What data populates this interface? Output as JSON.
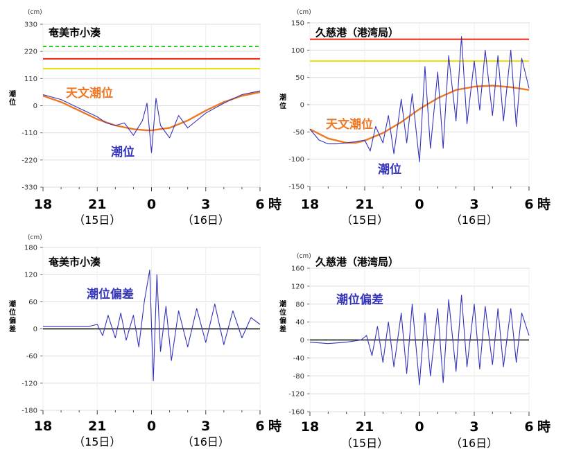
{
  "chart_data": [
    {
      "type": "line",
      "title": "奄美市小湊",
      "unit": "(cm)",
      "ylabel": "潮位",
      "yticks": [
        330,
        220,
        110,
        0,
        -110,
        -220,
        -330
      ],
      "ylim": [
        -330,
        330
      ],
      "x_ticks": [
        "18",
        "21",
        "0",
        "3",
        "6"
      ],
      "x_unit": "時",
      "date_labels": [
        {
          "at": "21",
          "text": "（15日）"
        },
        {
          "at": "3",
          "text": "（16日）"
        }
      ],
      "x_range_hours": [
        0,
        12
      ],
      "thresholds": [
        {
          "value": 240,
          "color": "#22cc22",
          "style": "dashed"
        },
        {
          "value": 190,
          "color": "#ee2211",
          "style": "solid"
        },
        {
          "value": 150,
          "color": "#eedd00",
          "style": "solid"
        }
      ],
      "series": [
        {
          "name": "天文潮位",
          "color": "#ee7722",
          "x": [
            0,
            1,
            2,
            3,
            4,
            5,
            5.75,
            6,
            7,
            8,
            9,
            10,
            11,
            12
          ],
          "values": [
            40,
            15,
            -20,
            -55,
            -80,
            -95,
            -100,
            -100,
            -90,
            -60,
            -20,
            15,
            40,
            55
          ]
        },
        {
          "name": "潮位",
          "color": "#3333bb",
          "x": [
            0,
            1,
            2,
            3,
            3.5,
            4,
            4.5,
            5,
            5.5,
            5.75,
            6,
            6.25,
            6.5,
            7,
            7.5,
            8,
            9,
            10,
            11,
            12
          ],
          "values": [
            45,
            25,
            -10,
            -45,
            -70,
            -80,
            -70,
            -120,
            -60,
            10,
            -190,
            30,
            -80,
            -130,
            -40,
            -90,
            -30,
            10,
            45,
            60
          ]
        }
      ]
    },
    {
      "type": "line",
      "title": "久慈港（港湾局）",
      "unit": "(cm)",
      "ylabel": "潮位",
      "yticks": [
        150,
        100,
        50,
        0,
        -50,
        -100,
        -150
      ],
      "ylim": [
        -150,
        150
      ],
      "x_ticks": [
        "18",
        "21",
        "0",
        "3",
        "6"
      ],
      "x_unit": "時",
      "date_labels": [
        {
          "at": "21",
          "text": "（15日）"
        },
        {
          "at": "3",
          "text": "（16日）"
        }
      ],
      "x_range_hours": [
        0,
        12
      ],
      "thresholds": [
        {
          "value": 120,
          "color": "#ee2211",
          "style": "solid"
        },
        {
          "value": 80,
          "color": "#eedd00",
          "style": "solid"
        }
      ],
      "series": [
        {
          "name": "天文潮位",
          "color": "#ee7722",
          "x": [
            0,
            1,
            2,
            2.5,
            3,
            4,
            5,
            6,
            7,
            8,
            9,
            10,
            11,
            12
          ],
          "values": [
            -45,
            -62,
            -70,
            -70,
            -66,
            -52,
            -32,
            -8,
            12,
            27,
            33,
            35,
            32,
            27
          ]
        },
        {
          "name": "潮位",
          "color": "#3333bb",
          "x": [
            0,
            0.5,
            1,
            1.5,
            2,
            2.5,
            3,
            3.3,
            3.6,
            4,
            4.3,
            4.6,
            5,
            5.3,
            5.6,
            6,
            6.3,
            6.6,
            7,
            7.3,
            7.6,
            8,
            8.3,
            8.6,
            9,
            9.3,
            9.6,
            10,
            10.3,
            10.6,
            11,
            11.3,
            11.6,
            12
          ],
          "values": [
            -45,
            -65,
            -72,
            -72,
            -70,
            -68,
            -65,
            -85,
            -40,
            -70,
            -20,
            -90,
            10,
            -70,
            20,
            -105,
            70,
            -80,
            60,
            -80,
            90,
            -30,
            125,
            -35,
            80,
            -10,
            100,
            -20,
            90,
            -30,
            100,
            -40,
            85,
            30
          ]
        }
      ]
    },
    {
      "type": "line",
      "title": "奄美市小湊",
      "unit": "(cm)",
      "ylabel": "潮位偏差",
      "yticks": [
        180,
        120,
        60,
        0,
        -60,
        -120,
        -180
      ],
      "ylim": [
        -180,
        180
      ],
      "x_ticks": [
        "18",
        "21",
        "0",
        "3",
        "6"
      ],
      "x_unit": "時",
      "date_labels": [
        {
          "at": "21",
          "text": "（15日）"
        },
        {
          "at": "3",
          "text": "（16日）"
        }
      ],
      "x_range_hours": [
        0,
        12
      ],
      "series": [
        {
          "name": "潮位偏差",
          "color": "#3333bb",
          "x": [
            0,
            2.5,
            3,
            3.3,
            3.6,
            4,
            4.3,
            4.6,
            5,
            5.3,
            5.6,
            5.9,
            6.1,
            6.3,
            6.5,
            6.8,
            7.1,
            7.5,
            8,
            8.5,
            9,
            9.5,
            10,
            10.5,
            11,
            11.5,
            12
          ],
          "values": [
            5,
            5,
            10,
            -15,
            30,
            -20,
            35,
            -25,
            30,
            -40,
            60,
            130,
            -115,
            120,
            -50,
            50,
            -70,
            40,
            -40,
            45,
            -30,
            55,
            -35,
            40,
            -20,
            25,
            10
          ]
        }
      ]
    },
    {
      "type": "line",
      "title": "久慈港（港湾局）",
      "unit": "(cm)",
      "ylabel": "潮位偏差",
      "yticks": [
        160,
        120,
        80,
        40,
        0,
        -40,
        -80,
        -120,
        -160
      ],
      "ylim": [
        -160,
        160
      ],
      "x_ticks": [
        "18",
        "21",
        "0",
        "3",
        "6"
      ],
      "x_unit": "時",
      "date_labels": [
        {
          "at": "21",
          "text": "（15日）"
        },
        {
          "at": "3",
          "text": "（16日）"
        }
      ],
      "x_range_hours": [
        0,
        12
      ],
      "series": [
        {
          "name": "潮位偏差",
          "color": "#3333bb",
          "x": [
            0,
            1,
            2,
            2.8,
            3.1,
            3.4,
            3.7,
            4,
            4.3,
            4.6,
            5,
            5.3,
            5.6,
            6,
            6.3,
            6.6,
            7,
            7.3,
            7.6,
            8,
            8.3,
            8.6,
            9,
            9.3,
            9.6,
            10,
            10.3,
            10.6,
            11,
            11.3,
            11.6,
            12
          ],
          "values": [
            -5,
            -8,
            -5,
            0,
            10,
            -35,
            30,
            -50,
            40,
            -60,
            60,
            -75,
            80,
            -100,
            60,
            -80,
            70,
            -95,
            90,
            -70,
            100,
            -60,
            80,
            -65,
            75,
            -55,
            70,
            -60,
            70,
            -50,
            60,
            10
          ]
        }
      ]
    }
  ]
}
